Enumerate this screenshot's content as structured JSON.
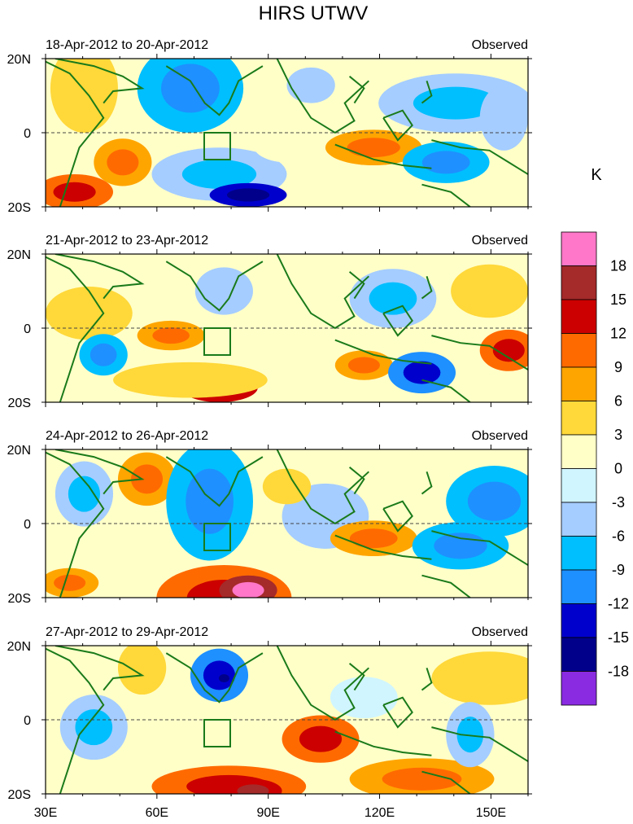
{
  "title": "HIRS UTWV",
  "panels": [
    {
      "date_range": "18-Apr-2012 to 20-Apr-2012",
      "label": "Observed"
    },
    {
      "date_range": "21-Apr-2012 to 23-Apr-2012",
      "label": "Observed"
    },
    {
      "date_range": "24-Apr-2012 to 26-Apr-2012",
      "label": "Observed"
    },
    {
      "date_range": "27-Apr-2012 to 29-Apr-2012",
      "label": "Observed"
    }
  ],
  "axes": {
    "y_ticks": [
      "20N",
      "0",
      "20S"
    ],
    "x_ticks": [
      "30E",
      "60E",
      "90E",
      "120E",
      "150E"
    ],
    "lon_range": [
      30,
      160
    ],
    "lat_range": [
      -20,
      20
    ]
  },
  "colorbar": {
    "unit": "K",
    "labels": [
      "18",
      "15",
      "12",
      "9",
      "6",
      "3",
      "0",
      "-3",
      "-6",
      "-9",
      "-12",
      "-15",
      "-18"
    ],
    "colors": [
      "#ff77c8",
      "#a52a2a",
      "#cc0000",
      "#ff6a00",
      "#ffa500",
      "#ffd83a",
      "#ffffc8",
      "#d0f5ff",
      "#a5cdff",
      "#00bfff",
      "#1e90ff",
      "#0000cd",
      "#00008b",
      "#8a2be2"
    ]
  }
}
